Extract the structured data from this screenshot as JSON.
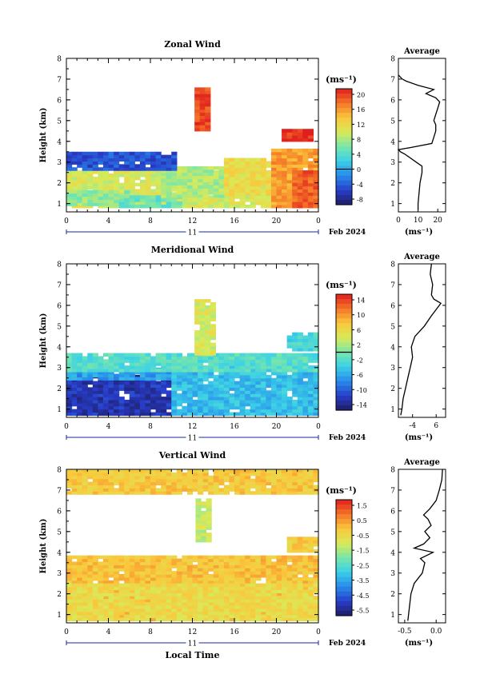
{
  "figure": {
    "x_ticks": [
      "0",
      "4",
      "8",
      "12",
      "16",
      "20",
      "0"
    ],
    "y_ticks": [
      "1",
      "2",
      "3",
      "4",
      "5",
      "6",
      "7",
      "8"
    ],
    "ylabel": "Height (km)",
    "day_label": "11",
    "month_label": "Feb 2024",
    "xlabel": "Local Time",
    "unit_label": "(ms⁻¹)",
    "avg_title": "Average",
    "avg_unit": "(ms⁻¹)"
  },
  "chart_data": [
    {
      "type": "heatmap",
      "title": "Zonal Wind",
      "colorbar_ticks": [
        "20",
        "16",
        "12",
        "8",
        "4",
        "0",
        "-4",
        "-8"
      ],
      "colorbar_range": [
        -10,
        22
      ],
      "avg_xticks": [
        "0",
        "10",
        "20"
      ],
      "avg_xrange": [
        0,
        24
      ],
      "profile": [
        [
          0.7,
          10
        ],
        [
          1.0,
          10
        ],
        [
          1.5,
          10.5
        ],
        [
          2.0,
          11
        ],
        [
          2.5,
          12
        ],
        [
          2.8,
          12
        ],
        [
          3.0,
          9
        ],
        [
          3.2,
          6
        ],
        [
          3.4,
          3
        ],
        [
          3.5,
          1
        ],
        [
          3.6,
          0
        ],
        [
          3.7,
          6
        ],
        [
          3.9,
          17
        ],
        [
          4.2,
          18
        ],
        [
          4.5,
          19
        ],
        [
          4.8,
          19
        ],
        [
          5.0,
          18
        ],
        [
          5.3,
          19
        ],
        [
          5.6,
          20
        ],
        [
          5.9,
          21
        ],
        [
          6.1,
          19
        ],
        [
          6.3,
          14
        ],
        [
          6.5,
          18
        ],
        [
          6.7,
          10
        ],
        [
          6.9,
          4
        ],
        [
          7.0,
          2
        ],
        [
          7.2,
          0
        ]
      ],
      "blobs": [
        {
          "tr": [
            0,
            19.5
          ],
          "hr": [
            0.8,
            2.6
          ],
          "c": 10
        },
        {
          "tr": [
            0,
            6
          ],
          "hr": [
            0.9,
            1.6
          ],
          "c": 7
        },
        {
          "tr": [
            5,
            11
          ],
          "hr": [
            0.8,
            1.4
          ],
          "c": 5
        },
        {
          "tr": [
            9,
            15
          ],
          "hr": [
            1.3,
            2.8
          ],
          "c": 8
        },
        {
          "tr": [
            15,
            19.5
          ],
          "hr": [
            1.4,
            3.1
          ],
          "c": 12
        },
        {
          "tr": [
            19.5,
            24
          ],
          "hr": [
            0.8,
            3.6
          ],
          "c": 16
        },
        {
          "tr": [
            21.5,
            24
          ],
          "hr": [
            0.8,
            2.6
          ],
          "c": 19
        },
        {
          "tr": [
            0,
            10.5
          ],
          "hr": [
            2.6,
            3.5
          ],
          "c": -5
        },
        {
          "tr": [
            12.2,
            13.4
          ],
          "hr": [
            4.5,
            6.5
          ],
          "c": 20
        },
        {
          "tr": [
            20.5,
            23.2
          ],
          "hr": [
            4.0,
            4.5
          ],
          "c": 21
        }
      ]
    },
    {
      "type": "heatmap",
      "title": "Meridional Wind",
      "colorbar_ticks": [
        "14",
        "10",
        "6",
        "2",
        "-2",
        "-6",
        "-10",
        "-14"
      ],
      "colorbar_range": [
        -16,
        16
      ],
      "avg_xticks": [
        "-4",
        "6"
      ],
      "avg_xrange": [
        -10,
        10
      ],
      "profile": [
        [
          0.7,
          -9
        ],
        [
          1.0,
          -8.5
        ],
        [
          1.5,
          -8
        ],
        [
          2.0,
          -7
        ],
        [
          2.5,
          -6
        ],
        [
          3.0,
          -5
        ],
        [
          3.5,
          -4
        ],
        [
          4.0,
          -4.5
        ],
        [
          4.5,
          -3
        ],
        [
          5.0,
          1
        ],
        [
          5.5,
          4
        ],
        [
          5.8,
          6
        ],
        [
          6.1,
          8
        ],
        [
          6.3,
          5
        ],
        [
          6.5,
          4
        ],
        [
          7.0,
          4.5
        ],
        [
          7.5,
          3.5
        ],
        [
          8.0,
          4
        ]
      ],
      "blobs": [
        {
          "tr": [
            0,
            10
          ],
          "hr": [
            0.7,
            2.6
          ],
          "c": -13
        },
        {
          "tr": [
            0,
            12
          ],
          "hr": [
            2.4,
            3.0
          ],
          "c": -7
        },
        {
          "tr": [
            10,
            24
          ],
          "hr": [
            0.7,
            3.0
          ],
          "c": -5
        },
        {
          "tr": [
            0,
            24
          ],
          "hr": [
            2.8,
            3.6
          ],
          "c": -2
        },
        {
          "tr": [
            12.2,
            13.8
          ],
          "hr": [
            3.6,
            6.2
          ],
          "c": 4
        },
        {
          "tr": [
            21,
            24
          ],
          "hr": [
            3.8,
            4.7
          ],
          "c": -3
        }
      ]
    },
    {
      "type": "heatmap",
      "title": "Vertical Wind",
      "colorbar_ticks": [
        "1.5",
        "0.5",
        "-0.5",
        "-1.5",
        "-2.5",
        "-3.5",
        "-4.5",
        "-5.5"
      ],
      "colorbar_range": [
        -6,
        2
      ],
      "avg_xticks": [
        "-0.5",
        "0.0"
      ],
      "avg_xrange": [
        -0.6,
        0.15
      ],
      "profile": [
        [
          0.7,
          -0.45
        ],
        [
          1.5,
          -0.42
        ],
        [
          2.0,
          -0.4
        ],
        [
          2.5,
          -0.35
        ],
        [
          3.0,
          -0.22
        ],
        [
          3.5,
          -0.18
        ],
        [
          3.7,
          -0.25
        ],
        [
          4.0,
          -0.05
        ],
        [
          4.2,
          -0.35
        ],
        [
          4.4,
          -0.2
        ],
        [
          4.7,
          -0.1
        ],
        [
          5.0,
          -0.18
        ],
        [
          5.3,
          -0.08
        ],
        [
          5.6,
          -0.13
        ],
        [
          5.8,
          -0.2
        ],
        [
          6.1,
          -0.1
        ],
        [
          6.5,
          0.0
        ],
        [
          7.0,
          0.05
        ],
        [
          7.5,
          0.09
        ],
        [
          8.0,
          0.1
        ]
      ],
      "blobs": [
        {
          "tr": [
            0,
            24
          ],
          "hr": [
            0.7,
            3.8
          ],
          "c": 0.0
        },
        {
          "tr": [
            0,
            24
          ],
          "hr": [
            0.7,
            2.4
          ],
          "c": -0.5
        },
        {
          "tr": [
            0,
            24
          ],
          "hr": [
            6.8,
            8.0
          ],
          "c": -0.1
        },
        {
          "tr": [
            12.3,
            13.8
          ],
          "hr": [
            4.5,
            6.5
          ],
          "c": -1.2
        },
        {
          "tr": [
            21,
            24
          ],
          "hr": [
            4.0,
            4.7
          ],
          "c": -0.2
        }
      ]
    }
  ]
}
